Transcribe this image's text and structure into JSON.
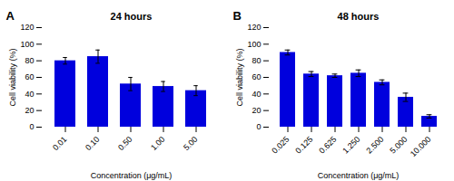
{
  "chart_data": [
    {
      "type": "bar",
      "title": "24 hours",
      "annotations": [
        "A"
      ],
      "xlabel": "Concentration (μg/mL)",
      "ylabel": "Cell viability (%)",
      "categories": [
        "0.01",
        "0.10",
        "0.50",
        "1.00",
        "5.00"
      ],
      "values": [
        80,
        85,
        52,
        49,
        44
      ],
      "errors": [
        4,
        8,
        8,
        6,
        6
      ],
      "color": "#0000dd",
      "ylim": [
        0,
        120
      ],
      "yticks": [
        0,
        20,
        40,
        60,
        80,
        100,
        120
      ],
      "grid": false
    },
    {
      "type": "bar",
      "title": "48 hours",
      "annotations": [
        "B"
      ],
      "xlabel": "Concentration (μg/mL)",
      "ylabel": "Cell viability (%)",
      "categories": [
        "0.025",
        "0.125",
        "0.625",
        "1.250",
        "2.500",
        "5.000",
        "10.000"
      ],
      "values": [
        90,
        64,
        62,
        65,
        54,
        36,
        13
      ],
      "errors": [
        3,
        3,
        2,
        4,
        3,
        5,
        2
      ],
      "color": "#0000dd",
      "ylim": [
        0,
        120
      ],
      "yticks": [
        0,
        20,
        40,
        60,
        80,
        100,
        120
      ],
      "grid": false
    }
  ]
}
